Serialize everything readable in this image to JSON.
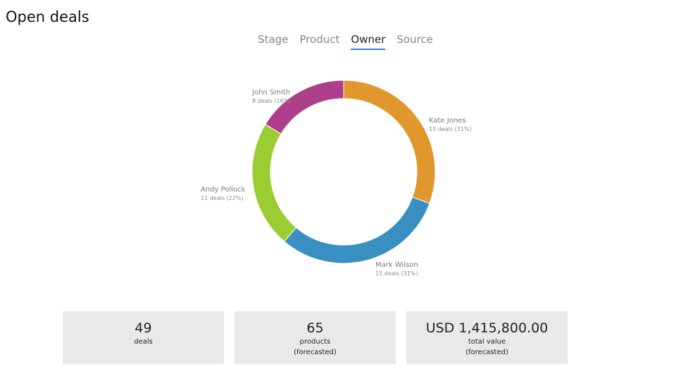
{
  "page": {
    "title": "Open deals"
  },
  "tabs": [
    {
      "label": "Stage",
      "active": false
    },
    {
      "label": "Product",
      "active": false
    },
    {
      "label": "Owner",
      "active": true
    },
    {
      "label": "Source",
      "active": false
    }
  ],
  "colors": {
    "tab_active_underline": "#3a7fd5",
    "card_background": "#e9e9e9"
  },
  "chart_data": {
    "type": "pie",
    "variant": "donut",
    "title": "",
    "slices": [
      {
        "name": "Kate Jones",
        "deals": 15,
        "detail": "15 deals (31%)",
        "color": "#e0972d"
      },
      {
        "name": "Mark Wilson",
        "deals": 15,
        "detail": "15 deals (31%)",
        "color": "#3a8fc2"
      },
      {
        "name": "Andy Pollock",
        "deals": 11,
        "detail": "11 deals (22%)",
        "color": "#9acd32"
      },
      {
        "name": "John Smith",
        "deals": 8,
        "detail": "8 deals (16%)",
        "color": "#ad3e89"
      }
    ]
  },
  "stats": [
    {
      "value": "49",
      "label_line1": "deals",
      "label_line2": ""
    },
    {
      "value": "65",
      "label_line1": "products",
      "label_line2": "(forecasted)"
    },
    {
      "value": "USD 1,415,800.00",
      "label_line1": "total value",
      "label_line2": "(forecasted)"
    }
  ]
}
